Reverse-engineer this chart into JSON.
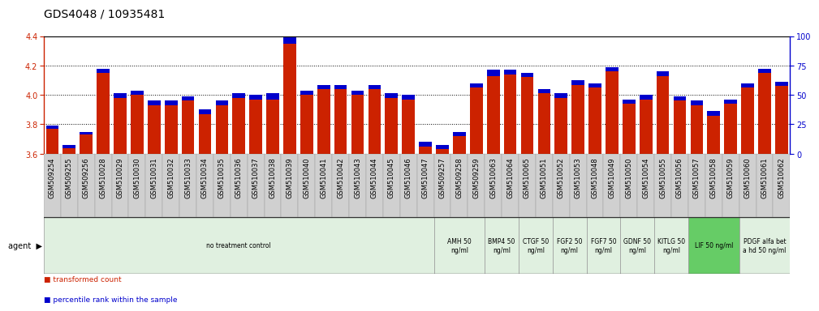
{
  "title": "GDS4048 / 10935481",
  "samples": [
    "GSM509254",
    "GSM509255",
    "GSM509256",
    "GSM510028",
    "GSM510029",
    "GSM510030",
    "GSM510031",
    "GSM510032",
    "GSM510033",
    "GSM510034",
    "GSM510035",
    "GSM510036",
    "GSM510037",
    "GSM510038",
    "GSM510039",
    "GSM510040",
    "GSM510041",
    "GSM510042",
    "GSM510043",
    "GSM510044",
    "GSM510045",
    "GSM510046",
    "GSM510047",
    "GSM509257",
    "GSM509258",
    "GSM509259",
    "GSM510063",
    "GSM510064",
    "GSM510065",
    "GSM510051",
    "GSM510052",
    "GSM510053",
    "GSM510048",
    "GSM510049",
    "GSM510050",
    "GSM510054",
    "GSM510055",
    "GSM510056",
    "GSM510057",
    "GSM510058",
    "GSM510059",
    "GSM510060",
    "GSM510061",
    "GSM510062"
  ],
  "red_tops": [
    3.77,
    3.64,
    3.73,
    4.15,
    3.98,
    4.0,
    3.93,
    3.93,
    3.96,
    3.87,
    3.93,
    3.98,
    3.97,
    3.97,
    4.35,
    4.0,
    4.04,
    4.04,
    4.0,
    4.04,
    3.98,
    3.97,
    3.65,
    3.63,
    3.72,
    4.05,
    4.13,
    4.14,
    4.12,
    4.01,
    3.98,
    4.07,
    4.05,
    4.16,
    3.94,
    3.97,
    4.13,
    3.96,
    3.93,
    3.86,
    3.94,
    4.05,
    4.15,
    4.06
  ],
  "blue_tops": [
    3.79,
    3.66,
    3.75,
    4.18,
    4.01,
    4.03,
    3.96,
    3.96,
    3.99,
    3.9,
    3.96,
    4.01,
    4.0,
    4.01,
    4.39,
    4.03,
    4.07,
    4.07,
    4.03,
    4.07,
    4.01,
    4.0,
    3.68,
    3.66,
    3.75,
    4.08,
    4.17,
    4.17,
    4.15,
    4.04,
    4.01,
    4.1,
    4.08,
    4.19,
    3.97,
    4.0,
    4.16,
    3.99,
    3.96,
    3.89,
    3.97,
    4.08,
    4.18,
    4.09
  ],
  "ymin": 3.6,
  "ymax": 4.4,
  "yticks_left": [
    3.6,
    3.8,
    4.0,
    4.2,
    4.4
  ],
  "yticks_right": [
    0,
    25,
    50,
    75,
    100
  ],
  "red_color": "#cc2200",
  "blue_color": "#0000cc",
  "background_color": "#ffffff",
  "tick_label_bg": "#d8d8d8",
  "grid_color": "#000000",
  "agent_groups": [
    {
      "label": "no treatment control",
      "start": 0,
      "end": 22,
      "color": "#e0f0e0"
    },
    {
      "label": "AMH 50\nng/ml",
      "start": 23,
      "end": 25,
      "color": "#e0f0e0"
    },
    {
      "label": "BMP4 50\nng/ml",
      "start": 26,
      "end": 27,
      "color": "#e0f0e0"
    },
    {
      "label": "CTGF 50\nng/ml",
      "start": 28,
      "end": 29,
      "color": "#e0f0e0"
    },
    {
      "label": "FGF2 50\nng/ml",
      "start": 30,
      "end": 31,
      "color": "#e0f0e0"
    },
    {
      "label": "FGF7 50\nng/ml",
      "start": 32,
      "end": 33,
      "color": "#e0f0e0"
    },
    {
      "label": "GDNF 50\nng/ml",
      "start": 34,
      "end": 35,
      "color": "#e0f0e0"
    },
    {
      "label": "KITLG 50\nng/ml",
      "start": 36,
      "end": 37,
      "color": "#e0f0e0"
    },
    {
      "label": "LIF 50 ng/ml",
      "start": 38,
      "end": 40,
      "color": "#66cc66"
    },
    {
      "label": "PDGF alfa bet\na hd 50 ng/ml",
      "start": 41,
      "end": 43,
      "color": "#e0f0e0"
    }
  ],
  "left_axis_color": "#cc2200",
  "right_axis_color": "#0000cc",
  "title_fontsize": 10,
  "tick_fontsize": 6,
  "bar_width": 0.75
}
